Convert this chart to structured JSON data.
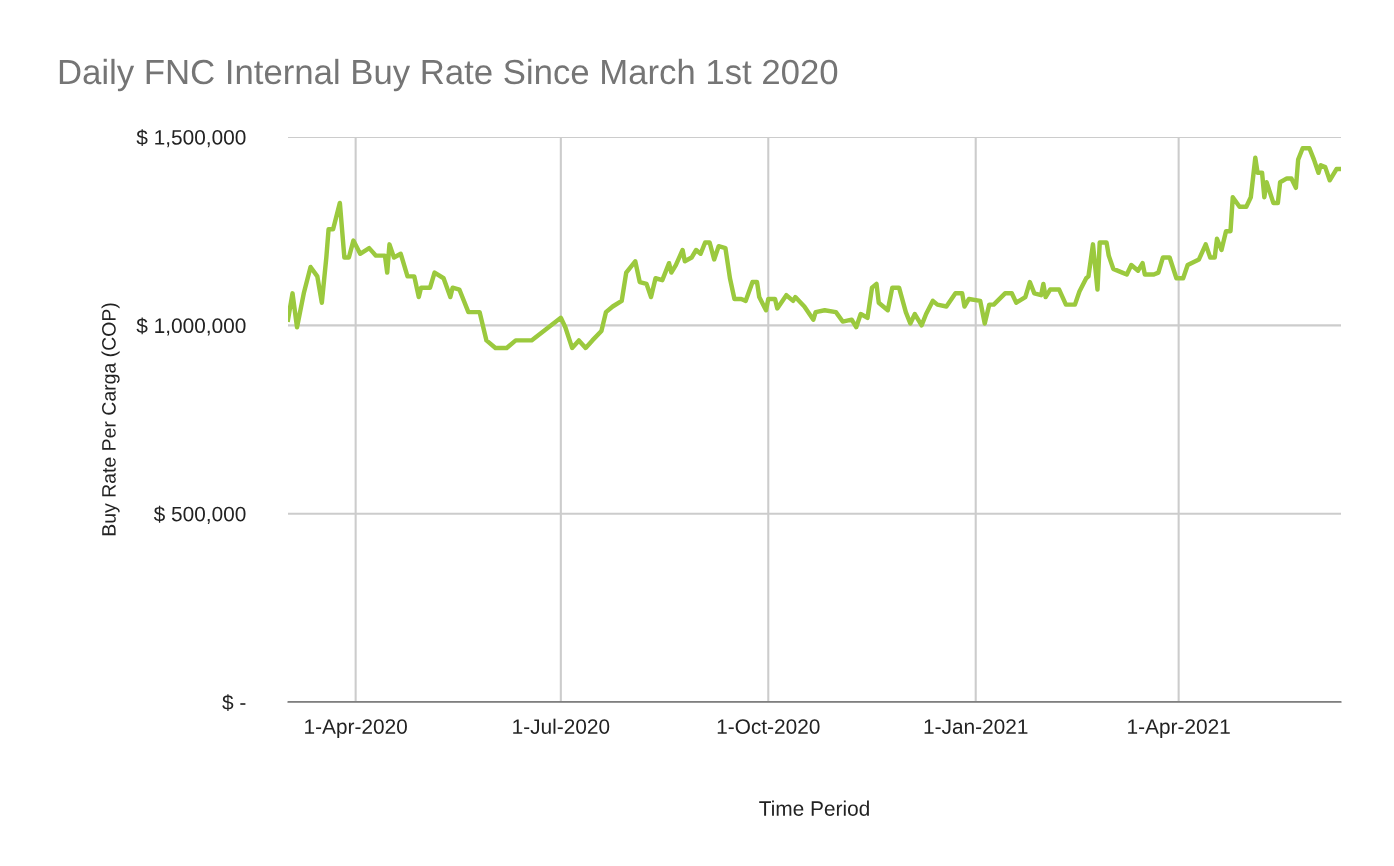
{
  "chart_data": {
    "type": "line",
    "title": "Daily FNC Internal Buy Rate Since March 1st 2020",
    "xlabel": "Time Period",
    "ylabel": "Buy Rate Per Carga (COP)",
    "x": [
      "2020-03-02",
      "2020-03-04",
      "2020-03-06",
      "2020-03-09",
      "2020-03-12",
      "2020-03-15",
      "2020-03-17",
      "2020-03-19",
      "2020-03-20",
      "2020-03-22",
      "2020-03-25",
      "2020-03-27",
      "2020-03-29",
      "2020-03-31",
      "2020-04-03",
      "2020-04-07",
      "2020-04-10",
      "2020-04-14",
      "2020-04-15",
      "2020-04-16",
      "2020-04-18",
      "2020-04-21",
      "2020-04-24",
      "2020-04-27",
      "2020-04-29",
      "2020-04-30",
      "2020-05-04",
      "2020-05-06",
      "2020-05-10",
      "2020-05-13",
      "2020-05-14",
      "2020-05-17",
      "2020-05-21",
      "2020-05-26",
      "2020-05-29",
      "2020-06-02",
      "2020-06-07",
      "2020-06-11",
      "2020-06-18",
      "2020-07-01",
      "2020-07-03",
      "2020-07-06",
      "2020-07-09",
      "2020-07-12",
      "2020-07-15",
      "2020-07-19",
      "2020-07-21",
      "2020-07-24",
      "2020-07-28",
      "2020-07-30",
      "2020-08-03",
      "2020-08-05",
      "2020-08-08",
      "2020-08-10",
      "2020-08-12",
      "2020-08-15",
      "2020-08-18",
      "2020-08-19",
      "2020-08-21",
      "2020-08-24",
      "2020-08-25",
      "2020-08-28",
      "2020-08-30",
      "2020-09-01",
      "2020-09-03",
      "2020-09-05",
      "2020-09-07",
      "2020-09-09",
      "2020-09-12",
      "2020-09-14",
      "2020-09-16",
      "2020-09-19",
      "2020-09-21",
      "2020-09-24",
      "2020-09-26",
      "2020-09-27",
      "2020-09-30",
      "2020-10-01",
      "2020-10-04",
      "2020-10-05",
      "2020-10-09",
      "2020-10-12",
      "2020-10-13",
      "2020-10-17",
      "2020-10-21",
      "2020-10-22",
      "2020-10-26",
      "2020-10-31",
      "2020-11-03",
      "2020-11-07",
      "2020-11-09",
      "2020-11-11",
      "2020-11-14",
      "2020-11-16",
      "2020-11-18",
      "2020-11-19",
      "2020-11-23",
      "2020-11-25",
      "2020-11-28",
      "2020-12-01",
      "2020-12-03",
      "2020-12-05",
      "2020-12-08",
      "2020-12-10",
      "2020-12-13",
      "2020-12-15",
      "2020-12-19",
      "2020-12-23",
      "2020-12-26",
      "2020-12-27",
      "2020-12-29",
      "2021-01-03",
      "2021-01-05",
      "2021-01-07",
      "2021-01-09",
      "2021-01-14",
      "2021-01-17",
      "2021-01-19",
      "2021-01-23",
      "2021-01-25",
      "2021-01-27",
      "2021-01-30",
      "2021-01-31",
      "2021-02-01",
      "2021-02-03",
      "2021-02-07",
      "2021-02-10",
      "2021-02-14",
      "2021-02-16",
      "2021-02-19",
      "2021-02-20",
      "2021-02-22",
      "2021-02-24",
      "2021-02-25",
      "2021-02-28",
      "2021-03-01",
      "2021-03-03",
      "2021-03-07",
      "2021-03-09",
      "2021-03-11",
      "2021-03-14",
      "2021-03-16",
      "2021-03-17",
      "2021-03-21",
      "2021-03-23",
      "2021-03-25",
      "2021-03-28",
      "2021-03-31",
      "2021-04-03",
      "2021-04-05",
      "2021-04-10",
      "2021-04-13",
      "2021-04-15",
      "2021-04-17",
      "2021-04-18",
      "2021-04-20",
      "2021-04-22",
      "2021-04-24",
      "2021-04-25",
      "2021-04-28",
      "2021-05-01",
      "2021-05-03",
      "2021-05-05",
      "2021-05-06",
      "2021-05-08",
      "2021-05-09",
      "2021-05-10",
      "2021-05-13",
      "2021-05-15",
      "2021-05-16",
      "2021-05-19",
      "2021-05-21",
      "2021-05-23",
      "2021-05-24",
      "2021-05-26",
      "2021-05-29",
      "2021-05-31",
      "2021-06-02",
      "2021-06-03",
      "2021-06-05",
      "2021-06-07",
      "2021-06-10",
      "2021-06-12"
    ],
    "series": [
      {
        "color": "#9bc93e",
        "values": [
          1015000,
          1085000,
          995000,
          1085000,
          1155000,
          1130000,
          1060000,
          1180000,
          1255000,
          1255000,
          1325000,
          1180000,
          1180000,
          1225000,
          1190000,
          1205000,
          1185000,
          1185000,
          1140000,
          1215000,
          1180000,
          1190000,
          1130000,
          1130000,
          1075000,
          1100000,
          1100000,
          1140000,
          1125000,
          1075000,
          1100000,
          1095000,
          1035000,
          1035000,
          960000,
          940000,
          940000,
          960000,
          960000,
          1020000,
          995000,
          940000,
          960000,
          940000,
          960000,
          985000,
          1035000,
          1050000,
          1065000,
          1140000,
          1170000,
          1115000,
          1110000,
          1075000,
          1125000,
          1120000,
          1165000,
          1140000,
          1160000,
          1200000,
          1170000,
          1180000,
          1200000,
          1190000,
          1220000,
          1220000,
          1175000,
          1210000,
          1205000,
          1125000,
          1070000,
          1070000,
          1065000,
          1115000,
          1115000,
          1075000,
          1040000,
          1070000,
          1070000,
          1045000,
          1080000,
          1065000,
          1075000,
          1050000,
          1015000,
          1035000,
          1040000,
          1035000,
          1010000,
          1015000,
          995000,
          1030000,
          1020000,
          1100000,
          1110000,
          1060000,
          1040000,
          1100000,
          1100000,
          1035000,
          1005000,
          1030000,
          1000000,
          1030000,
          1065000,
          1055000,
          1050000,
          1085000,
          1085000,
          1050000,
          1070000,
          1065000,
          1005000,
          1055000,
          1055000,
          1085000,
          1085000,
          1060000,
          1075000,
          1115000,
          1085000,
          1080000,
          1110000,
          1075000,
          1095000,
          1095000,
          1055000,
          1055000,
          1090000,
          1125000,
          1130000,
          1215000,
          1095000,
          1220000,
          1220000,
          1185000,
          1150000,
          1140000,
          1135000,
          1160000,
          1145000,
          1165000,
          1135000,
          1135000,
          1140000,
          1180000,
          1180000,
          1125000,
          1125000,
          1160000,
          1175000,
          1215000,
          1180000,
          1180000,
          1230000,
          1200000,
          1250000,
          1250000,
          1340000,
          1315000,
          1315000,
          1340000,
          1445000,
          1405000,
          1405000,
          1340000,
          1380000,
          1325000,
          1325000,
          1380000,
          1390000,
          1390000,
          1365000,
          1440000,
          1470000,
          1470000,
          1440000,
          1405000,
          1425000,
          1420000,
          1385000,
          1415000,
          1415000
        ]
      }
    ],
    "xlim": [
      "2020-03-02",
      "2021-06-12"
    ],
    "xticks": [
      {
        "value": "2020-04-01",
        "label": "1-Apr-2020"
      },
      {
        "value": "2020-07-01",
        "label": "1-Jul-2020"
      },
      {
        "value": "2020-10-01",
        "label": "1-Oct-2020"
      },
      {
        "value": "2021-01-01",
        "label": "1-Jan-2021"
      },
      {
        "value": "2021-04-01",
        "label": "1-Apr-2021"
      }
    ],
    "ylim": [
      0,
      1500000
    ],
    "yticks": [
      {
        "value": 0,
        "label": "$ -"
      },
      {
        "value": 500000,
        "label": "$ 500,000"
      },
      {
        "value": 1000000,
        "label": "$ 1,000,000"
      },
      {
        "value": 1500000,
        "label": "$ 1,500,000"
      }
    ],
    "grid": true,
    "marker": "none",
    "line_style": "solid"
  }
}
